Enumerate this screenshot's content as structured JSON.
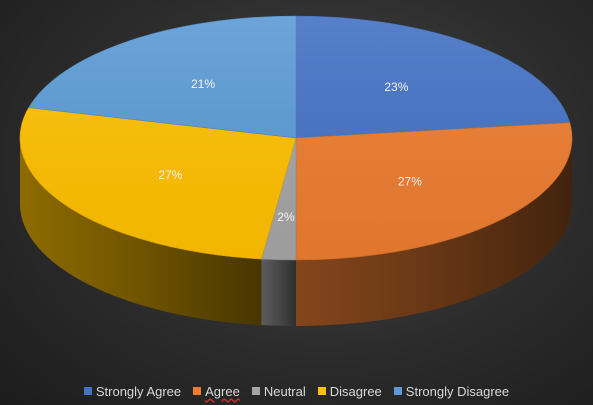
{
  "chart_data": {
    "type": "pie",
    "variant": "3d",
    "start_angle_deg": 0,
    "direction": "clockwise",
    "categories": [
      "Strongly Agree",
      "Agree",
      "Neutral",
      "Disagree",
      "Strongly Disagree"
    ],
    "values": [
      23,
      27,
      2,
      27,
      21
    ],
    "data_labels": [
      "23%",
      "27%",
      "2%",
      "27%",
      "21%"
    ],
    "colors": [
      "#4472c4",
      "#ed7d31",
      "#a5a5a5",
      "#ffc000",
      "#5b9bd5"
    ],
    "legend_position": "bottom",
    "title": ""
  }
}
